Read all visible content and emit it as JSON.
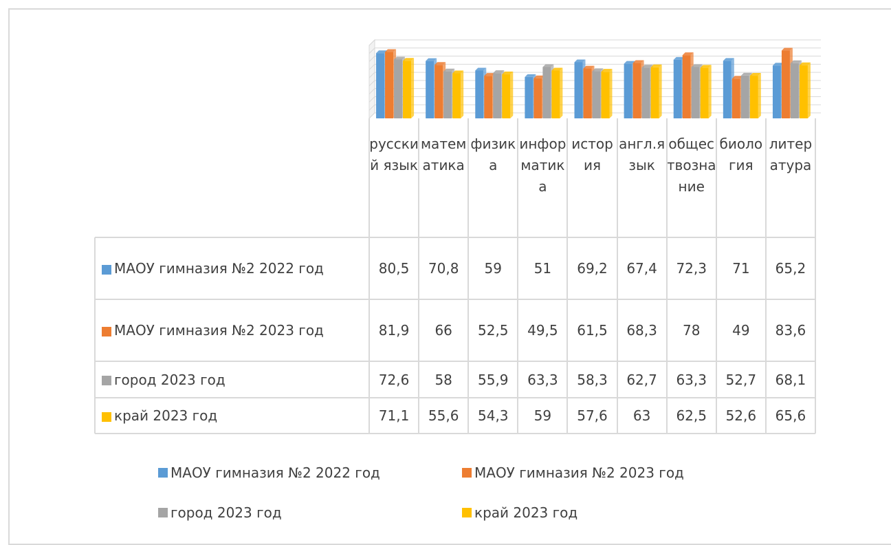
{
  "chart_data": {
    "type": "bar",
    "categories": [
      "русский язык",
      "математика",
      "физика",
      "информатика",
      "история",
      "англ.язык",
      "обществознание",
      "биология",
      "литература"
    ],
    "series": [
      {
        "name": "МАОУ гимназия №2 2022 год",
        "color": "#5b9bd5",
        "values": [
          80.5,
          70.8,
          59,
          51,
          69.2,
          67.4,
          72.3,
          71,
          65.2
        ],
        "value_labels": [
          "80,5",
          "70,8",
          "59",
          "51",
          "69,2",
          "67,4",
          "72,3",
          "71",
          "65,2"
        ]
      },
      {
        "name": "МАОУ гимназия №2 2023 год",
        "color": "#ed7d31",
        "values": [
          81.9,
          66,
          52.5,
          49.5,
          61.5,
          68.3,
          78,
          49,
          83.6
        ],
        "value_labels": [
          "81,9",
          "66",
          "52,5",
          "49,5",
          "61,5",
          "68,3",
          "78",
          "49",
          "83,6"
        ]
      },
      {
        "name": "город 2023 год",
        "color": "#a5a5a5",
        "values": [
          72.6,
          58,
          55.9,
          63.3,
          58.3,
          62.7,
          63.3,
          52.7,
          68.1
        ],
        "value_labels": [
          "72,6",
          "58",
          "55,9",
          "63,3",
          "58,3",
          "62,7",
          "63,3",
          "52,7",
          "68,1"
        ]
      },
      {
        "name": "край 2023 год",
        "color": "#ffc000",
        "values": [
          71.1,
          55.6,
          54.3,
          59,
          57.6,
          63,
          62.5,
          52.6,
          65.6
        ],
        "value_labels": [
          "71,1",
          "55,6",
          "54,3",
          "59",
          "57,6",
          "63",
          "62,5",
          "52,6",
          "65,6"
        ]
      }
    ],
    "ylim": [
      0,
      90
    ],
    "yticks": [
      0,
      10,
      20,
      30,
      40,
      50,
      60,
      70,
      80,
      90
    ],
    "grid": true,
    "legend": "bottom"
  }
}
